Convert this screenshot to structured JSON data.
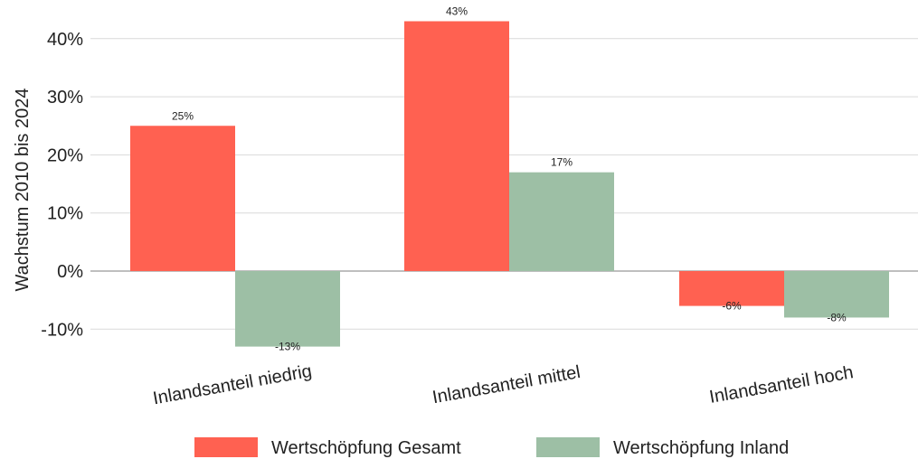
{
  "chart_data": {
    "type": "bar",
    "categories": [
      "Inlandsanteil niedrig",
      "Inlandsanteil mittel",
      "Inlandsanteil hoch"
    ],
    "series": [
      {
        "name": "Wertschöpfung Gesamt",
        "values": [
          25,
          43,
          -6
        ],
        "labels": [
          "25%",
          "43%",
          "-6%"
        ],
        "color": "#ff6151"
      },
      {
        "name": "Wertschöpfung Inland",
        "values": [
          -13,
          17,
          -8
        ],
        "labels": [
          "-13%",
          "17%",
          "-8%"
        ],
        "color": "#9dbfa5"
      }
    ],
    "ylabel": "Wachstum 2010 bis 2024",
    "ylim": [
      -14,
      44
    ],
    "yticks": [
      -10,
      0,
      10,
      20,
      30,
      40
    ],
    "ytick_labels": [
      "-10%",
      "0%",
      "10%",
      "20%",
      "30%",
      "40%"
    ],
    "grid": true,
    "legend_position": "bottom"
  }
}
